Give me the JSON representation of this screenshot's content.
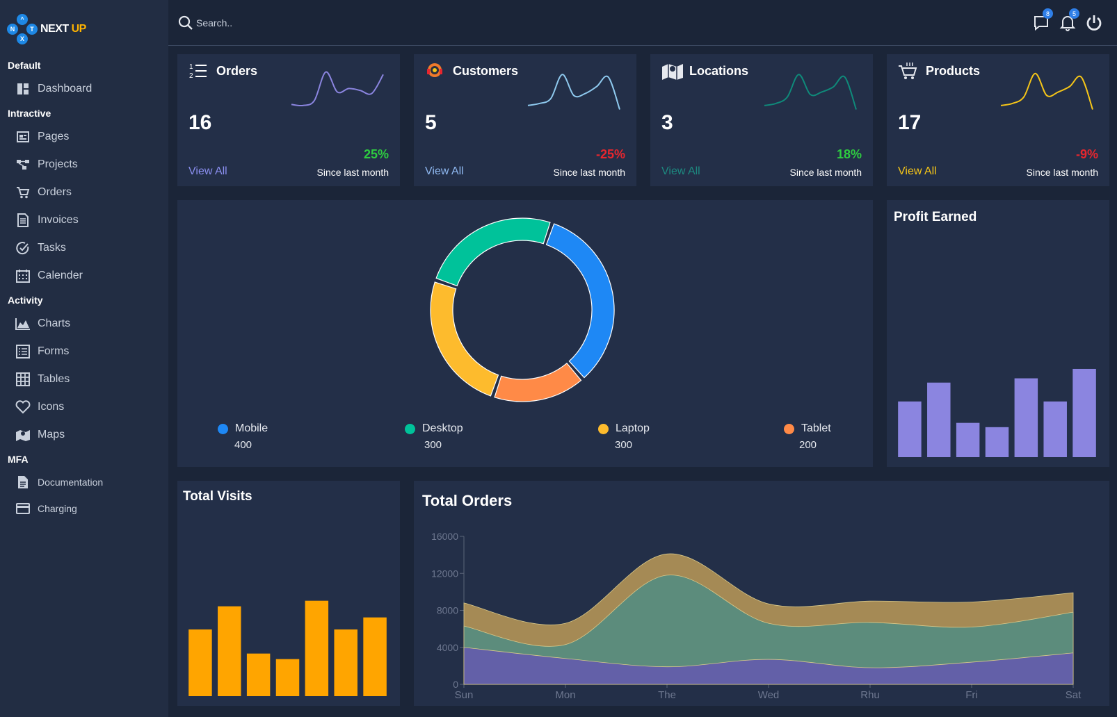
{
  "app": {
    "logo_letters": [
      "N",
      "T",
      "X",
      "^"
    ],
    "logo_text": "NEXT",
    "logo_accent": "UP"
  },
  "sidebar": {
    "sections": [
      {
        "label": "Default"
      },
      {
        "label": "Intractive"
      },
      {
        "label": "Activity"
      },
      {
        "label": "MFA"
      }
    ],
    "items": [
      {
        "label": "Dashboard",
        "icon": "dashboard-icon"
      },
      {
        "label": "Pages",
        "icon": "pages-icon"
      },
      {
        "label": "Projects",
        "icon": "projects-icon"
      },
      {
        "label": "Orders",
        "icon": "cart-icon"
      },
      {
        "label": "Invoices",
        "icon": "invoice-icon"
      },
      {
        "label": "Tasks",
        "icon": "check-circle-icon"
      },
      {
        "label": "Calender",
        "icon": "calendar-icon"
      },
      {
        "label": "Charts",
        "icon": "area-chart-icon"
      },
      {
        "label": "Forms",
        "icon": "form-icon"
      },
      {
        "label": "Tables",
        "icon": "table-icon"
      },
      {
        "label": "Icons",
        "icon": "heart-icon"
      },
      {
        "label": "Maps",
        "icon": "map-icon"
      },
      {
        "label": "Documentation",
        "icon": "document-icon"
      },
      {
        "label": "Charging",
        "icon": "card-icon"
      }
    ]
  },
  "topbar": {
    "search_placeholder": "Search..",
    "messages_count": "8",
    "notifications_count": "5"
  },
  "stats": [
    {
      "title": "Orders",
      "value": "16",
      "pct": "25%",
      "pct_color": "#2ecc40",
      "since": "Since last month",
      "link": "View All",
      "link_color": "#8b8ff0",
      "spark_color": "#8b85e0",
      "icon": "list-numbered-icon",
      "spark": [
        30,
        28,
        38,
        95,
        55,
        62,
        58,
        52,
        90
      ]
    },
    {
      "title": "Customers",
      "value": "5",
      "pct": "-25%",
      "pct_color": "#e8262e",
      "since": "Since last month",
      "link": "View All",
      "link_color": "#8fb8f0",
      "spark_color": "#8ec9ee",
      "icon": "support-agent-icon",
      "spark": [
        28,
        32,
        42,
        90,
        48,
        52,
        66,
        85,
        20
      ]
    },
    {
      "title": "Locations",
      "value": "3",
      "pct": "18%",
      "pct_color": "#2ecc40",
      "since": "Since last month",
      "link": "View All",
      "link_color": "#1d8a80",
      "spark_color": "#0f8a7a",
      "icon": "map-icon",
      "spark": [
        28,
        32,
        45,
        90,
        50,
        55,
        65,
        85,
        20
      ]
    },
    {
      "title": "Products",
      "value": "17",
      "pct": "-9%",
      "pct_color": "#e8262e",
      "since": "Since last month",
      "link": "View All",
      "link_color": "#f5c518",
      "spark_color": "#f5c518",
      "icon": "shopping-cart-icon",
      "spark": [
        28,
        32,
        45,
        92,
        48,
        55,
        66,
        85,
        20
      ]
    }
  ],
  "devices": {
    "items": [
      {
        "name": "Mobile",
        "value": 400,
        "color": "#1e88f5"
      },
      {
        "name": "Tablet",
        "value": 200,
        "color": "#ff8a47"
      },
      {
        "name": "Laptop",
        "value": 300,
        "color": "#fdbb2d"
      },
      {
        "name": "Desktop",
        "value": 300,
        "color": "#00c29a"
      }
    ],
    "legend_order": [
      "Mobile",
      "Desktop",
      "Laptop",
      "Tablet"
    ]
  },
  "profit": {
    "title": "Profit Earned",
    "color": "#8b85e0"
  },
  "visits": {
    "title": "Total Visits",
    "color": "#ffa500"
  },
  "orders_chart": {
    "title": "Total Orders"
  },
  "chart_data": [
    {
      "type": "pie",
      "categories": [
        "Mobile",
        "Tablet",
        "Laptop",
        "Desktop"
      ],
      "values": [
        400,
        200,
        300,
        300
      ],
      "donut": true
    },
    {
      "type": "bar",
      "title": "Profit Earned",
      "values": [
        65,
        87,
        40,
        35,
        92,
        65,
        103
      ],
      "ylim": [
        0,
        120
      ]
    },
    {
      "type": "bar",
      "title": "Total Visits",
      "values": [
        72,
        97,
        46,
        40,
        103,
        72,
        85
      ],
      "ylim": [
        0,
        120
      ]
    },
    {
      "type": "area",
      "title": "Total Orders",
      "categories": [
        "Sun",
        "Mon",
        "The",
        "Wed",
        "Rhu",
        "Fri",
        "Sat"
      ],
      "ylim": [
        0,
        16000
      ],
      "yticks": [
        0,
        4000,
        8000,
        12000,
        16000
      ],
      "series": [
        {
          "values": [
            4000,
            2800,
            1900,
            2700,
            1800,
            2400,
            3400
          ],
          "color": "#6360a8"
        },
        {
          "values": [
            2300,
            1500,
            9900,
            3900,
            4900,
            3800,
            4400
          ],
          "color": "#5c8c7c"
        },
        {
          "values": [
            2500,
            2300,
            2300,
            2100,
            2300,
            2700,
            2100
          ],
          "color": "#a58a55"
        }
      ]
    }
  ]
}
